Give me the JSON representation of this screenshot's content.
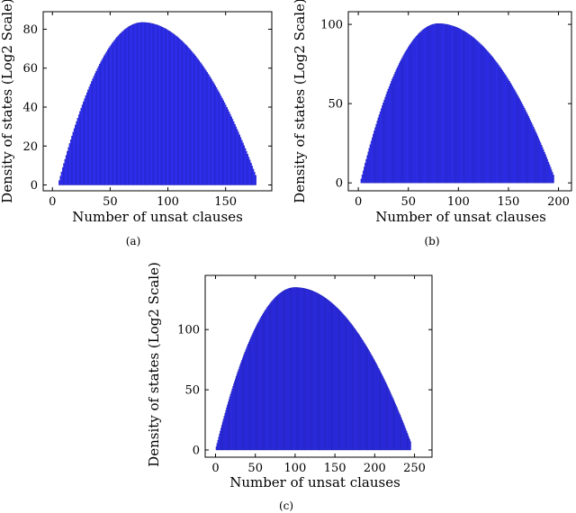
{
  "bar_color": "#3232ff",
  "bar_edge_color": "#1a1aa8",
  "chart_data": [
    {
      "id": "a",
      "type": "bar",
      "caption": "(a)",
      "xlabel": "Number of unsat clauses",
      "ylabel": "Density of states (Log2 Scale)",
      "xlim": [
        -8,
        190
      ],
      "ylim": [
        -3,
        89
      ],
      "xticks": [
        0,
        50,
        100,
        150
      ],
      "yticks": [
        0,
        20,
        40,
        60,
        80
      ],
      "x_range": [
        5,
        176
      ],
      "peak": [
        78,
        83.5
      ],
      "bar_width": 1,
      "curve": "inverted-parabola; y rises from 0 at x=5 to peak 83.5 at x=78, falls to ~5 at x=176 (sampled at every integer x)"
    },
    {
      "id": "b",
      "type": "bar",
      "caption": "(b)",
      "xlabel": "Number of unsat clauses",
      "ylabel": "Density of states (Log2 Scale)",
      "xlim": [
        -10,
        213
      ],
      "ylim": [
        -5,
        108
      ],
      "xticks": [
        0,
        50,
        100,
        150,
        200
      ],
      "yticks": [
        0,
        50,
        100
      ],
      "x_range": [
        2,
        195
      ],
      "peak": [
        80,
        100.5
      ],
      "bar_width": 1,
      "curve": "inverted-parabola; y rises from 0 at x=2 to peak 100.5 at x=80, falls to ~5 at x=195 (sampled at every integer x)"
    },
    {
      "id": "c",
      "type": "bar",
      "caption": "(c)",
      "xlabel": "Number of unsat clauses",
      "ylabel": "Density of states (Log2 Scale)",
      "xlim": [
        -13,
        272
      ],
      "ylim": [
        -6,
        145
      ],
      "xticks": [
        0,
        50,
        100,
        150,
        200,
        250
      ],
      "yticks": [
        0,
        50,
        100
      ],
      "x_range": [
        0,
        245
      ],
      "peak": [
        100,
        135
      ],
      "bar_width": 1,
      "curve": "inverted-parabola; y rises from 0 at x=0 to peak 135 at x=100, falls to ~7 at x=245 (sampled at every integer x)"
    }
  ]
}
